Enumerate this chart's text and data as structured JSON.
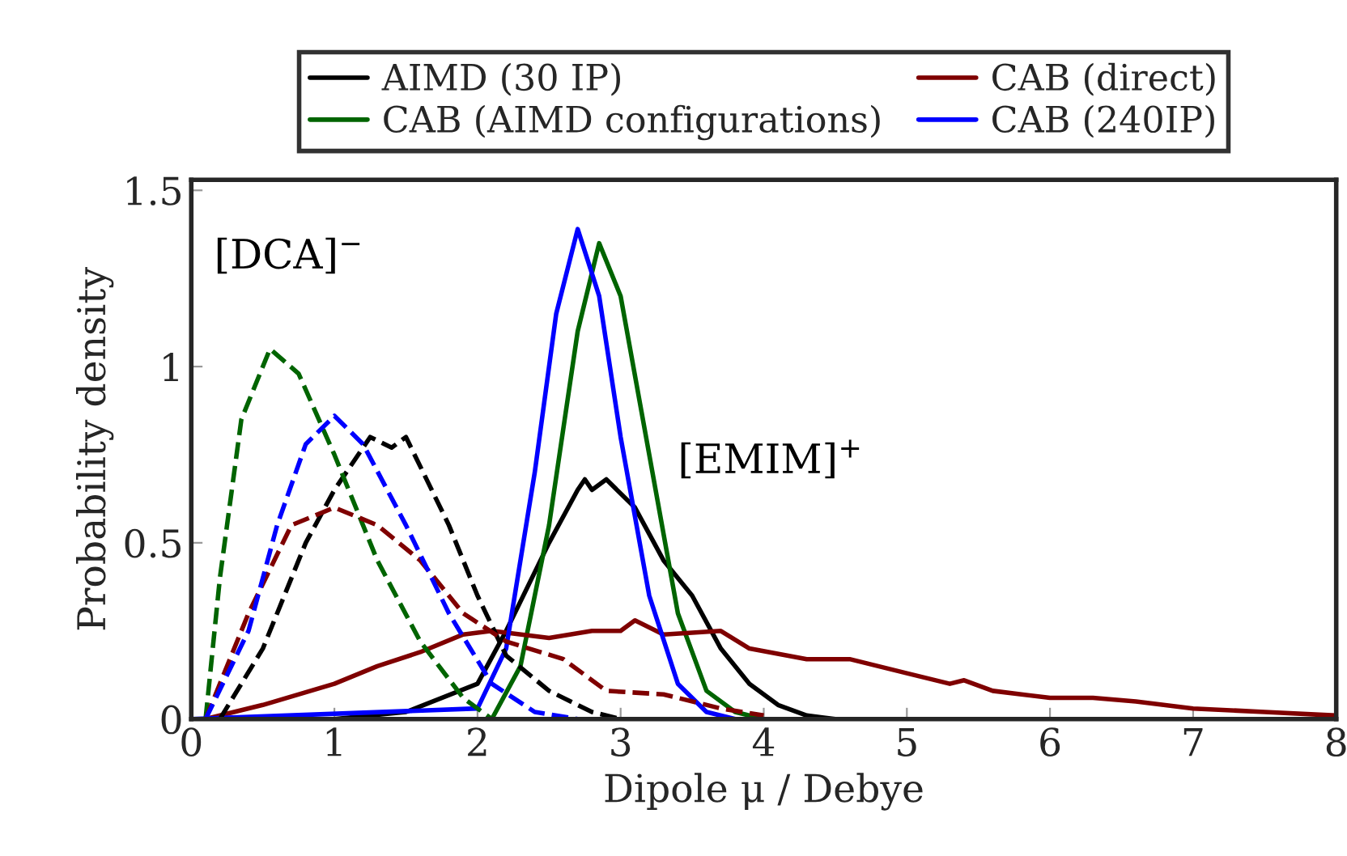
{
  "chart_data": {
    "type": "line",
    "xlabel": "Dipole μ / Debye",
    "ylabel": "Probability density",
    "xlim": [
      0,
      8
    ],
    "ylim": [
      0,
      1.53
    ],
    "xticks": [
      0,
      1,
      2,
      3,
      4,
      5,
      6,
      7,
      8
    ],
    "yticks": [
      0,
      0.5,
      1,
      1.5
    ],
    "grid": false,
    "legend": "top",
    "line_style": "solid",
    "annotations": [
      "[DCA]$^{−}$",
      "[EMIM]$^{+}$"
    ],
    "series": [
      {
        "name": "AIMD (30 IP)",
        "color": "#000000",
        "x": [
          0,
          1,
          1.5,
          2,
          2.2,
          2.5,
          2.7,
          2.75,
          2.8,
          2.9,
          3.1,
          3.3,
          3.5,
          3.7,
          3.9,
          4.1,
          4.3,
          4.5,
          8
        ],
        "values": [
          0,
          0,
          0.02,
          0.1,
          0.25,
          0.5,
          0.65,
          0.68,
          0.65,
          0.68,
          0.6,
          0.45,
          0.35,
          0.2,
          0.1,
          0.04,
          0.01,
          0,
          0
        ]
      },
      {
        "name": "CAB (AIMD configurations)",
        "color": "#006400",
        "x": [
          0,
          2.1,
          2.3,
          2.5,
          2.7,
          2.85,
          3.0,
          3.2,
          3.4,
          3.6,
          3.8,
          4.0,
          8
        ],
        "values": [
          0,
          0,
          0.15,
          0.55,
          1.1,
          1.35,
          1.2,
          0.75,
          0.3,
          0.08,
          0.02,
          0,
          0
        ]
      },
      {
        "name": "CAB (direct)",
        "color": "#7f0000",
        "x": [
          0.1,
          0.5,
          1,
          1.3,
          1.6,
          1.9,
          2.1,
          2.5,
          2.8,
          3.0,
          3.1,
          3.3,
          3.7,
          3.9,
          4.3,
          4.6,
          5.0,
          5.3,
          5.4,
          5.6,
          6.0,
          6.3,
          6.6,
          7.0,
          7.5,
          8
        ],
        "values": [
          0,
          0.04,
          0.1,
          0.15,
          0.19,
          0.24,
          0.25,
          0.23,
          0.25,
          0.25,
          0.28,
          0.24,
          0.25,
          0.2,
          0.17,
          0.17,
          0.13,
          0.1,
          0.11,
          0.08,
          0.06,
          0.06,
          0.05,
          0.03,
          0.02,
          0.01
        ]
      },
      {
        "name": "CAB (240IP)",
        "color": "#0000ff",
        "x": [
          0,
          2.0,
          2.2,
          2.4,
          2.55,
          2.7,
          2.85,
          3.0,
          3.2,
          3.4,
          3.6,
          3.8,
          8
        ],
        "values": [
          0,
          0.03,
          0.2,
          0.7,
          1.15,
          1.39,
          1.2,
          0.8,
          0.35,
          0.1,
          0.02,
          0,
          0
        ]
      },
      {
        "color": "#000000",
        "line_style": "dashed",
        "x": [
          0.2,
          0.5,
          0.8,
          1.0,
          1.25,
          1.4,
          1.5,
          1.8,
          2.0,
          2.2,
          2.5,
          2.8,
          3.0
        ],
        "values": [
          0,
          0.2,
          0.5,
          0.65,
          0.8,
          0.77,
          0.8,
          0.55,
          0.35,
          0.18,
          0.08,
          0.02,
          0
        ]
      },
      {
        "color": "#006400",
        "line_style": "dashed",
        "x": [
          0.1,
          0.2,
          0.35,
          0.55,
          0.75,
          1.0,
          1.3,
          1.6,
          1.9,
          2.1
        ],
        "values": [
          0,
          0.4,
          0.85,
          1.05,
          0.98,
          0.75,
          0.45,
          0.22,
          0.06,
          0
        ]
      },
      {
        "color": "#7f0000",
        "line_style": "dashed",
        "x": [
          0.1,
          0.4,
          0.7,
          1.0,
          1.3,
          1.6,
          1.9,
          2.2,
          2.6,
          2.9,
          3.3,
          3.7,
          4.0
        ],
        "values": [
          0,
          0.3,
          0.55,
          0.6,
          0.55,
          0.45,
          0.3,
          0.22,
          0.17,
          0.08,
          0.07,
          0.03,
          0.01
        ]
      },
      {
        "color": "#0000ff",
        "line_style": "dashed",
        "x": [
          0.1,
          0.4,
          0.6,
          0.8,
          1.0,
          1.2,
          1.5,
          1.8,
          2.1,
          2.4,
          2.7
        ],
        "values": [
          0,
          0.25,
          0.55,
          0.78,
          0.86,
          0.78,
          0.55,
          0.3,
          0.1,
          0.02,
          0
        ]
      }
    ]
  }
}
